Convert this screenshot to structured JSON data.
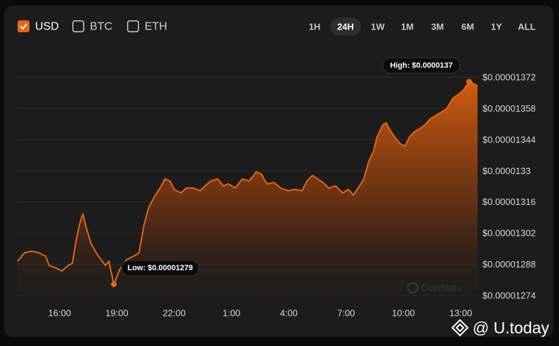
{
  "chart_data": {
    "type": "area",
    "currencies": [
      {
        "label": "USD",
        "checked": true
      },
      {
        "label": "BTC",
        "checked": false
      },
      {
        "label": "ETH",
        "checked": false
      }
    ],
    "ranges": [
      {
        "label": "1H",
        "active": false
      },
      {
        "label": "24H",
        "active": true
      },
      {
        "label": "1W",
        "active": false
      },
      {
        "label": "1M",
        "active": false
      },
      {
        "label": "3M",
        "active": false
      },
      {
        "label": "6M",
        "active": false
      },
      {
        "label": "1Y",
        "active": false
      },
      {
        "label": "ALL",
        "active": false
      }
    ],
    "x": [
      13.8,
      14.17,
      14.54,
      14.9,
      15.27,
      15.45,
      15.82,
      16.12,
      16.45,
      16.67,
      16.85,
      17.04,
      17.22,
      17.4,
      17.66,
      18.03,
      18.4,
      18.58,
      18.84,
      19.13,
      19.5,
      19.87,
      20.16,
      20.42,
      20.68,
      20.97,
      21.26,
      21.52,
      21.78,
      22.0,
      22.37,
      22.62,
      22.99,
      23.36,
      23.62,
      23.91,
      24.28,
      24.57,
      24.83,
      25.2,
      25.56,
      25.93,
      26.3,
      26.56,
      26.85,
      27.22,
      27.59,
      27.95,
      28.32,
      28.69,
      28.95,
      29.24,
      29.5,
      29.79,
      30.09,
      30.45,
      30.82,
      31.12,
      31.37,
      31.63,
      31.93,
      32.18,
      32.44,
      32.62,
      32.92,
      33.1,
      33.29,
      33.54,
      33.84,
      34.09,
      34.32,
      34.57,
      34.87,
      35.12,
      35.38,
      35.68,
      35.97,
      36.26,
      36.59,
      36.85,
      37.15,
      37.44,
      37.59,
      37.73,
      37.88
    ],
    "series": [
      {
        "color": "#e8650f",
        "values": [
          1.2894e-05,
          1.2932e-05,
          1.2939e-05,
          1.2932e-05,
          1.2916e-05,
          1.2875e-05,
          1.2863e-05,
          1.285e-05,
          1.2875e-05,
          1.2885e-05,
          1.298e-05,
          1.3058e-05,
          1.3106e-05,
          1.3043e-05,
          1.297e-05,
          1.2916e-05,
          1.2875e-05,
          1.2894e-05,
          1.279e-05,
          1.2853e-05,
          1.2901e-05,
          1.2916e-05,
          1.2932e-05,
          1.3058e-05,
          1.3137e-05,
          1.3184e-05,
          1.3222e-05,
          1.3263e-05,
          1.3254e-05,
          1.3216e-05,
          1.32e-05,
          1.3222e-05,
          1.3222e-05,
          1.321e-05,
          1.3232e-05,
          1.3254e-05,
          1.3263e-05,
          1.3232e-05,
          1.3241e-05,
          1.3222e-05,
          1.3263e-05,
          1.3254e-05,
          1.3295e-05,
          1.3285e-05,
          1.3241e-05,
          1.3247e-05,
          1.3222e-05,
          1.321e-05,
          1.3216e-05,
          1.321e-05,
          1.3254e-05,
          1.3279e-05,
          1.3263e-05,
          1.3247e-05,
          1.3222e-05,
          1.3232e-05,
          1.32e-05,
          1.3216e-05,
          1.3191e-05,
          1.3222e-05,
          1.3263e-05,
          1.3342e-05,
          1.3389e-05,
          1.3452e-05,
          1.3506e-05,
          1.3515e-05,
          1.3484e-05,
          1.3452e-05,
          1.3421e-05,
          1.3411e-05,
          1.3452e-05,
          1.3474e-05,
          1.349e-05,
          1.3506e-05,
          1.3531e-05,
          1.3547e-05,
          1.3562e-05,
          1.3578e-05,
          1.3625e-05,
          1.3641e-05,
          1.3663e-05,
          1.37e-05,
          1.3695e-05,
          1.3688e-05,
          1.3682e-05
        ]
      }
    ],
    "xlim": [
      13.8,
      37.88
    ],
    "xticks": [
      {
        "value": 16,
        "label": "16:00"
      },
      {
        "value": 19,
        "label": "19:00"
      },
      {
        "value": 22,
        "label": "22:00"
      },
      {
        "value": 25,
        "label": "1:00"
      },
      {
        "value": 28,
        "label": "4:00"
      },
      {
        "value": 31,
        "label": "7:00"
      },
      {
        "value": 34,
        "label": "10:00"
      },
      {
        "value": 37,
        "label": "13:00"
      }
    ],
    "ylim": [
      1.27e-05,
      1.38e-05
    ],
    "yticks": [
      {
        "value": 1.274e-05,
        "label": "$0.00001274"
      },
      {
        "value": 1.288e-05,
        "label": "$0.00001288"
      },
      {
        "value": 1.302e-05,
        "label": "$0.00001302"
      },
      {
        "value": 1.316e-05,
        "label": "$0.00001316"
      },
      {
        "value": 1.33e-05,
        "label": "$0.0000133"
      },
      {
        "value": 1.344e-05,
        "label": "$0.00001344"
      },
      {
        "value": 1.358e-05,
        "label": "$0.00001358"
      },
      {
        "value": 1.372e-05,
        "label": "$0.00001372"
      }
    ],
    "grid": true,
    "annotations": [
      {
        "text": "High: $0.0000137",
        "x": 37.44,
        "y": 1.37e-05
      },
      {
        "text": "Low: $0.00001279",
        "x": 18.84,
        "y": 1.279e-05
      }
    ],
    "watermark": "CoinStats",
    "credit": "@ U.today"
  }
}
